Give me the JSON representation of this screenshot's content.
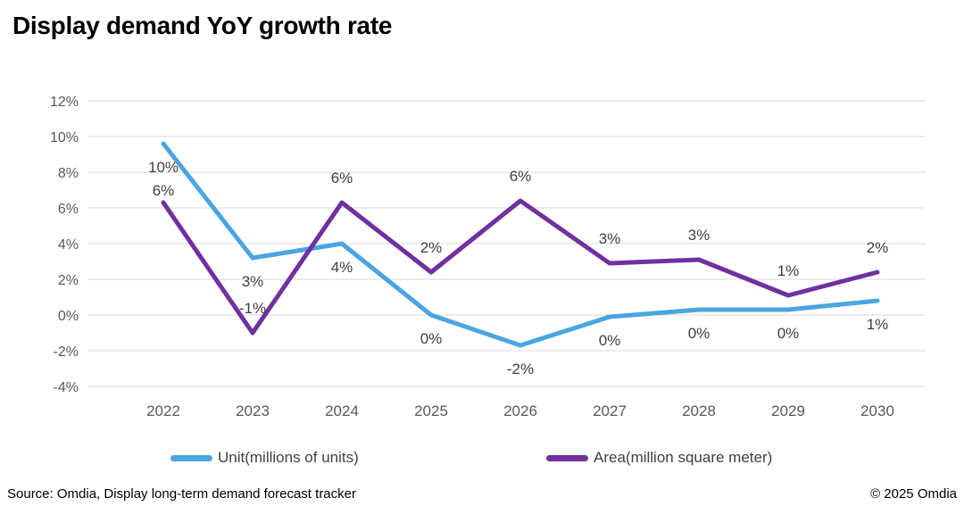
{
  "title": "Display demand YoY growth rate",
  "chart_data": {
    "type": "line",
    "title": "Display demand YoY growth rate",
    "categories": [
      "2022",
      "2023",
      "2024",
      "2025",
      "2026",
      "2027",
      "2028",
      "2029",
      "2030"
    ],
    "series": [
      {
        "name": "Unit(millions of units)",
        "color": "#4aa5e0",
        "values": [
          9.6,
          3.2,
          4.0,
          0.0,
          -1.7,
          -0.1,
          0.3,
          0.3,
          0.8
        ],
        "labels": [
          "10%",
          "3%",
          "4%",
          "0%",
          "-2%",
          "0%",
          "0%",
          "0%",
          "1%"
        ]
      },
      {
        "name": "Area(million square meter)",
        "color": "#7030a0",
        "values": [
          6.3,
          -1.0,
          6.3,
          2.4,
          6.4,
          2.9,
          3.1,
          1.1,
          2.4
        ],
        "labels": [
          "6%",
          "-1%",
          "6%",
          "2%",
          "6%",
          "3%",
          "3%",
          "1%",
          "2%"
        ]
      }
    ],
    "y_axis": {
      "ticks": [
        "12%",
        "10%",
        "8%",
        "6%",
        "4%",
        "2%",
        "0%",
        "-2%",
        "-4%"
      ],
      "tick_values": [
        12,
        10,
        8,
        6,
        4,
        2,
        0,
        -2,
        -4
      ],
      "min": -4,
      "max": 12
    },
    "grid": true,
    "legend_position": "bottom",
    "colors": {
      "gridline": "#d9d9d9",
      "axis_text": "#595959",
      "data_label_text": "#404040"
    }
  },
  "legend": {
    "items": [
      {
        "label": "Unit(millions of units)"
      },
      {
        "label": "Area(million square meter)"
      }
    ]
  },
  "footer": {
    "source": "Source: Omdia, Display long-term demand forecast tracker",
    "copyright": "© 2025 Omdia"
  }
}
